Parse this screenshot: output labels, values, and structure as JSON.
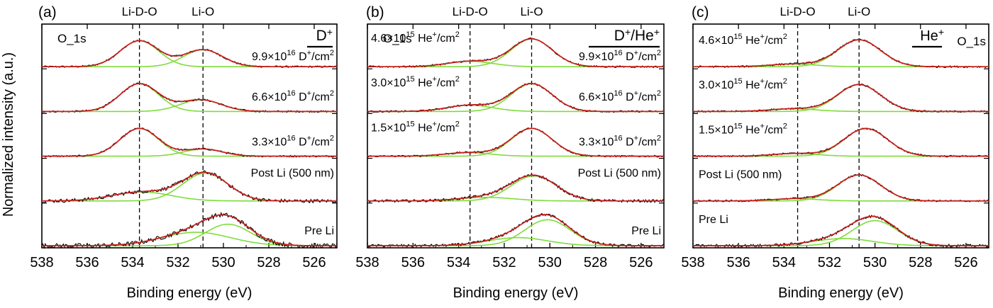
{
  "figure": {
    "ylabel": "Normalized intensity (a.u.)",
    "xlabel": "Binding energy (eV)"
  },
  "chart_data": [
    {
      "type": "line",
      "panel_label": "(a)",
      "legend_label": "D",
      "legend_sup": "+",
      "core_level": "O_1s",
      "xlabel": "Binding energy (eV)",
      "ylabel": "Normalized intensity (a.u.)",
      "xlim": [
        538,
        525
      ],
      "x_ticks": [
        538,
        536,
        534,
        532,
        530,
        528,
        526
      ],
      "reference_lines": [
        {
          "label": "Li-D-O",
          "x": 533.7
        },
        {
          "label": "Li-O",
          "x": 530.9
        }
      ],
      "spectra": [
        {
          "label": {
            "pre": "9.9×10",
            "exp": "16",
            "mid": " D",
            "sup": "+",
            "post": "/cm",
            "sup2": "2"
          },
          "peaks": [
            {
              "center": 533.7,
              "height": 0.58,
              "width": 0.85
            },
            {
              "center": 530.9,
              "height": 0.38,
              "width": 0.85
            }
          ],
          "noise": 0.02
        },
        {
          "label": {
            "pre": "6.6×10",
            "exp": "16",
            "mid": " D",
            "sup": "+",
            "post": "/cm",
            "sup2": "2"
          },
          "peaks": [
            {
              "center": 533.7,
              "height": 0.62,
              "width": 0.85
            },
            {
              "center": 531.0,
              "height": 0.26,
              "width": 0.9
            }
          ],
          "noise": 0.02
        },
        {
          "label": {
            "pre": "3.3×10",
            "exp": "16",
            "mid": " D",
            "sup": "+",
            "post": "/cm",
            "sup2": "2"
          },
          "peaks": [
            {
              "center": 533.7,
              "height": 0.62,
              "width": 0.85
            },
            {
              "center": 530.9,
              "height": 0.16,
              "width": 0.85
            }
          ],
          "noise": 0.02
        },
        {
          "label": {
            "pre": "Post Li (500 nm)"
          },
          "peaks": [
            {
              "center": 533.6,
              "height": 0.2,
              "width": 1.3
            },
            {
              "center": 530.8,
              "height": 0.62,
              "width": 1.0
            }
          ],
          "noise": 0.04
        },
        {
          "label": {
            "pre": "Pre Li"
          },
          "peaks": [
            {
              "center": 531.2,
              "height": 0.3,
              "width": 1.5
            },
            {
              "center": 529.8,
              "height": 0.48,
              "width": 1.0
            }
          ],
          "noise": 0.05
        }
      ]
    },
    {
      "type": "line",
      "panel_label": "(b)",
      "legend_label": "D",
      "legend_sup": "+",
      "legend_label2": "/He",
      "legend_sup2": "+",
      "core_level": "O_1s",
      "xlabel": "Binding energy (eV)",
      "ylabel": "",
      "xlim": [
        538,
        525
      ],
      "x_ticks": [
        538,
        536,
        534,
        532,
        530,
        528,
        526
      ],
      "reference_lines": [
        {
          "label": "Li-D-O",
          "x": 533.5
        },
        {
          "label": "Li-O",
          "x": 530.8
        }
      ],
      "spectra": [
        {
          "label": {
            "pre": "9.9×10",
            "exp": "16",
            "mid": " D",
            "sup": "+",
            "post": "/cm",
            "sup2": "2"
          },
          "label_left": {
            "pre": "4.6×10",
            "exp": "15",
            "mid": " He",
            "sup": "+",
            "post": "/cm",
            "sup2": "2"
          },
          "peaks": [
            {
              "center": 533.5,
              "height": 0.12,
              "width": 1.0
            },
            {
              "center": 530.8,
              "height": 0.62,
              "width": 0.9
            }
          ],
          "noise": 0.02
        },
        {
          "label": {
            "pre": "6.6×10",
            "exp": "16",
            "mid": " D",
            "sup": "+",
            "post": "/cm",
            "sup2": "2"
          },
          "label_left": {
            "pre": "3.0×10",
            "exp": "15",
            "mid": " He",
            "sup": "+",
            "post": "/cm",
            "sup2": "2"
          },
          "peaks": [
            {
              "center": 533.5,
              "height": 0.14,
              "width": 1.0
            },
            {
              "center": 530.8,
              "height": 0.62,
              "width": 0.9
            }
          ],
          "noise": 0.02
        },
        {
          "label": {
            "pre": "3.3×10",
            "exp": "16",
            "mid": " D",
            "sup": "+",
            "post": "/cm",
            "sup2": "2"
          },
          "label_left": {
            "pre": "1.5×10",
            "exp": "15",
            "mid": " He",
            "sup": "+",
            "post": "/cm",
            "sup2": "2"
          },
          "peaks": [
            {
              "center": 533.6,
              "height": 0.08,
              "width": 1.0
            },
            {
              "center": 530.8,
              "height": 0.62,
              "width": 0.9
            }
          ],
          "noise": 0.02
        },
        {
          "label": {
            "pre": "Post Li (500 nm)"
          },
          "peaks": [
            {
              "center": 532.8,
              "height": 0.08,
              "width": 1.2
            },
            {
              "center": 530.7,
              "height": 0.56,
              "width": 1.0
            }
          ],
          "noise": 0.03
        },
        {
          "label": {
            "pre": "Pre Li"
          },
          "peaks": [
            {
              "center": 531.4,
              "height": 0.18,
              "width": 1.3
            },
            {
              "center": 530.1,
              "height": 0.58,
              "width": 1.0
            }
          ],
          "noise": 0.03
        }
      ]
    },
    {
      "type": "line",
      "panel_label": "(c)",
      "legend_label": "He",
      "legend_sup": "+",
      "core_level": "O_1s",
      "xlabel": "Binding energy (eV)",
      "ylabel": "",
      "xlim": [
        538,
        525
      ],
      "x_ticks": [
        538,
        536,
        534,
        532,
        530,
        528,
        526
      ],
      "reference_lines": [
        {
          "label": "Li-D-O",
          "x": 533.4
        },
        {
          "label": "Li-O",
          "x": 530.7
        }
      ],
      "spectra": [
        {
          "label_left": {
            "pre": "4.6×10",
            "exp": "15",
            "mid": " He",
            "sup": "+",
            "post": "/cm",
            "sup2": "2"
          },
          "peaks": [
            {
              "center": 533.6,
              "height": 0.06,
              "width": 1.0
            },
            {
              "center": 530.7,
              "height": 0.6,
              "width": 0.95
            }
          ],
          "noise": 0.02
        },
        {
          "label_left": {
            "pre": "3.0×10",
            "exp": "15",
            "mid": " He",
            "sup": "+",
            "post": "/cm",
            "sup2": "2"
          },
          "peaks": [
            {
              "center": 533.6,
              "height": 0.06,
              "width": 1.0
            },
            {
              "center": 530.7,
              "height": 0.6,
              "width": 0.95
            }
          ],
          "noise": 0.02
        },
        {
          "label_left": {
            "pre": "1.5×10",
            "exp": "15",
            "mid": " He",
            "sup": "+",
            "post": "/cm",
            "sup2": "2"
          },
          "peaks": [
            {
              "center": 533.5,
              "height": 0.06,
              "width": 1.0
            },
            {
              "center": 530.4,
              "height": 0.62,
              "width": 0.95
            }
          ],
          "noise": 0.02
        },
        {
          "label_left": {
            "pre": "Post Li (500 nm)"
          },
          "peaks": [
            {
              "center": 533.5,
              "height": 0.05,
              "width": 1.0
            },
            {
              "center": 530.7,
              "height": 0.58,
              "width": 0.95
            }
          ],
          "noise": 0.02
        },
        {
          "label_left": {
            "pre": "Pre Li"
          },
          "peaks": [
            {
              "center": 531.4,
              "height": 0.16,
              "width": 1.3
            },
            {
              "center": 530.0,
              "height": 0.56,
              "width": 1.0
            }
          ],
          "noise": 0.03
        }
      ]
    }
  ],
  "colors": {
    "data": "#000000",
    "fit_envelope": "#cc1f1f",
    "component": "#7fdc3a",
    "axis": "#000000",
    "reference_line": "#000000"
  }
}
